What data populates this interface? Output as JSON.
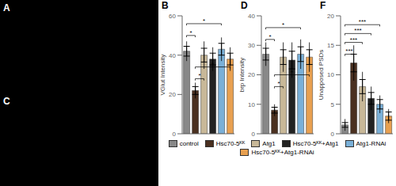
{
  "annotations": [
    "A",
    "C"
  ],
  "chart_data": [
    {
      "type": "bar",
      "title": "B",
      "ylabel": "VGlut Intensity",
      "categories": [
        "control",
        "Hsc70-5ᴷᴷ",
        "Atg1",
        "Hsc70-5ᴷᴷ+Atg1",
        "Atg1-RNAi",
        "Hsc70-5ᴷᴷ+Atg1-RNAi"
      ],
      "values": [
        42,
        22,
        40,
        38,
        43,
        38
      ],
      "sem": [
        2.5,
        2.0,
        3.5,
        3.0,
        3.0,
        3.0
      ],
      "sd": [
        5,
        4,
        7,
        6,
        6,
        6
      ],
      "colors": [
        "#888888",
        "#4a3020",
        "#c8b898",
        "#222222",
        "#7ab0d8",
        "#e8a050"
      ],
      "ylim": [
        0,
        60
      ],
      "yticks": [
        0,
        20,
        40,
        60
      ],
      "tick_labels": "y",
      "annotations": [
        {
          "text": "*",
          "from": "control",
          "to": "Hsc70-5ᴷᴷ",
          "y": 50
        },
        {
          "text": "*",
          "from": "Hsc70-5ᴷᴷ",
          "to": "Atg1",
          "y": 28
        },
        {
          "text": "*",
          "from": "control",
          "to": "Atg1-RNAi",
          "y": 56
        },
        {
          "text": "*",
          "from": "Hsc70-5ᴷᴷ",
          "to": "Hsc70-5ᴷᴷ+Atg1-RNAi",
          "y": 34
        }
      ]
    },
    {
      "type": "bar",
      "title": "D",
      "ylabel": "brp Intensity",
      "categories": [
        "control",
        "Hsc70-5ᴷᴷ",
        "Atg1",
        "Hsc70-5ᴷᴷ+Atg1",
        "Atg1-RNAi",
        "Hsc70-5ᴷᴷ+Atg1-RNAi"
      ],
      "values": [
        27,
        8,
        26,
        25,
        27,
        26
      ],
      "sem": [
        2.0,
        1.0,
        2.5,
        3.0,
        2.5,
        2.5
      ],
      "sd": [
        4,
        2,
        5,
        6,
        5,
        5
      ],
      "colors": [
        "#888888",
        "#4a3020",
        "#c8b898",
        "#222222",
        "#7ab0d8",
        "#e8a050"
      ],
      "ylim": [
        0,
        40
      ],
      "yticks": [
        0,
        10,
        20,
        30,
        40
      ],
      "tick_labels": "y",
      "annotations": [
        {
          "text": "*",
          "from": "control",
          "to": "Hsc70-5ᴷᴷ",
          "y": 32
        },
        {
          "text": "*",
          "from": "Hsc70-5ᴷᴷ",
          "to": "Atg1",
          "y": 16
        },
        {
          "text": "*",
          "from": "control",
          "to": "Atg1-RNAi",
          "y": 36
        },
        {
          "text": "*",
          "from": "Hsc70-5ᴷᴷ",
          "to": "Hsc70-5ᴷᴷ+Atg1-RNAi",
          "y": 20
        }
      ]
    },
    {
      "type": "bar",
      "title": "F",
      "ylabel": "Unapposed PSDs",
      "categories": [
        "control",
        "Hsc70-5ᴷᴷ",
        "Atg1",
        "Hsc70-5ᴷᴷ+Atg1",
        "Atg1-RNAi",
        "Hsc70-5ᴷᴷ+Atg1-RNAi"
      ],
      "values": [
        1.5,
        12,
        8,
        6,
        5,
        3
      ],
      "sem": [
        0.4,
        1.5,
        1.2,
        1.0,
        0.8,
        0.7
      ],
      "sd": [
        1.0,
        3.0,
        2.5,
        2.0,
        1.5,
        1.2
      ],
      "colors": [
        "#888888",
        "#4a3020",
        "#c8b898",
        "#222222",
        "#7ab0d8",
        "#e8a050"
      ],
      "ylim": [
        0,
        20
      ],
      "yticks": [
        0,
        5,
        10,
        15,
        20
      ],
      "tick_labels": "y",
      "legend": "bottom",
      "annotations": [
        {
          "text": "***",
          "from": "control",
          "to": "Hsc70-5ᴷᴷ",
          "y": 13.5
        },
        {
          "text": "***",
          "from": "control",
          "to": "Atg1",
          "y": 15.5
        },
        {
          "text": "***",
          "from": "control",
          "to": "Hsc70-5ᴷᴷ+Atg1",
          "y": 17.0
        },
        {
          "text": "***",
          "from": "control",
          "to": "Atg1-RNAi",
          "y": 18.5
        }
      ]
    }
  ]
}
